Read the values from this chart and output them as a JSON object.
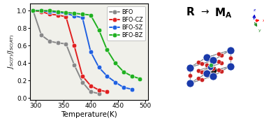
{
  "xlabel": "Temperature(K)",
  "ylabel": "J_{SC(T)}/J_{SC(RT)}",
  "xlim": [
    290,
    505
  ],
  "ylim": [
    -0.02,
    1.08
  ],
  "xticks": [
    300,
    350,
    400,
    450,
    500
  ],
  "yticks": [
    0.0,
    0.2,
    0.4,
    0.6,
    0.8,
    1.0
  ],
  "series": [
    {
      "label": "BFO",
      "color": "#888888",
      "x": [
        295,
        310,
        325,
        340,
        355,
        370,
        385,
        400,
        415
      ],
      "y": [
        1.0,
        0.72,
        0.65,
        0.63,
        0.62,
        0.38,
        0.18,
        0.07,
        0.05
      ]
    },
    {
      "label": "BFO-CZ",
      "color": "#e02020",
      "x": [
        295,
        310,
        325,
        340,
        355,
        370,
        385,
        400,
        415,
        430
      ],
      "y": [
        1.0,
        0.99,
        0.96,
        0.95,
        0.93,
        0.6,
        0.25,
        0.14,
        0.09,
        0.07
      ]
    },
    {
      "label": "BFO-SZ",
      "color": "#2060e0",
      "x": [
        295,
        310,
        325,
        340,
        355,
        370,
        385,
        400,
        415,
        430,
        445,
        460,
        475
      ],
      "y": [
        1.0,
        1.0,
        0.99,
        0.98,
        0.97,
        0.94,
        0.92,
        0.53,
        0.35,
        0.25,
        0.18,
        0.12,
        0.1
      ]
    },
    {
      "label": "BFO-BZ",
      "color": "#20b020",
      "x": [
        295,
        310,
        325,
        340,
        355,
        370,
        385,
        400,
        415,
        430,
        445,
        460,
        475,
        490
      ],
      "y": [
        1.0,
        1.0,
        1.0,
        0.99,
        0.98,
        0.97,
        0.96,
        0.95,
        0.78,
        0.55,
        0.4,
        0.3,
        0.25,
        0.22
      ]
    }
  ],
  "bg_color": "#f0f0ea",
  "title_r": "R",
  "title_arrow": "→",
  "title_m": "M",
  "title_sub": "A",
  "atom_blue_color": "#1a3aaa",
  "atom_red_color": "#cc2222",
  "atom_green_color": "#22aa44",
  "bond_color": "#888888",
  "dashed_color": "#6688bb"
}
